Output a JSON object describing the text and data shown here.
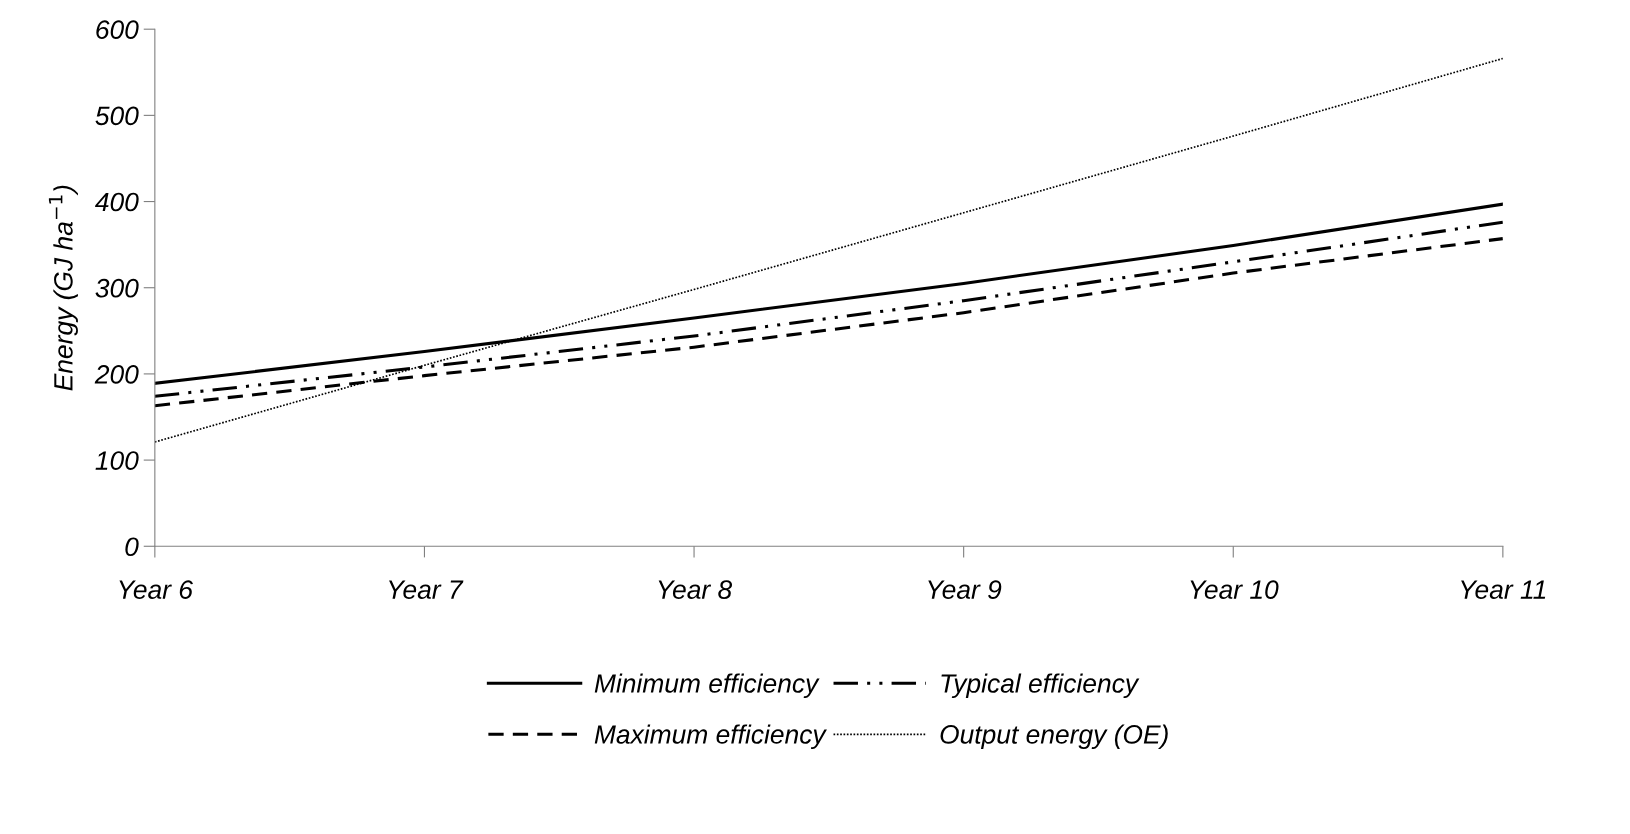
{
  "chart_data": {
    "type": "line",
    "ylabel": "Energy (GJ ha$^{−1}$)",
    "categories": [
      "Year 6",
      "Year 7",
      "Year 8",
      "Year 9",
      "Year 10",
      "Year 11"
    ],
    "series": [
      {
        "name": "Minimum efficiency",
        "color": "#000000",
        "line_style": "solid",
        "values": [
          189,
          226,
          265,
          305,
          349,
          397
        ]
      },
      {
        "name": "Typical efficiency",
        "color": "#000000",
        "line_style": "dashdotdot",
        "values": [
          174,
          208,
          244,
          285,
          330,
          376
        ]
      },
      {
        "name": "Maximum efficiency",
        "color": "#000000",
        "line_style": "dashed",
        "values": [
          163,
          198,
          231,
          271,
          317,
          357
        ]
      },
      {
        "name": "Output energy (OE)",
        "color": "#000000",
        "line_style": "dotted",
        "values": [
          121,
          210,
          298,
          387,
          476,
          566
        ]
      }
    ],
    "ylim": [
      0,
      600
    ],
    "yticks": [
      0,
      100,
      200,
      300,
      400,
      500,
      600
    ],
    "grid": false,
    "legend": "bottom",
    "marker": "none"
  }
}
